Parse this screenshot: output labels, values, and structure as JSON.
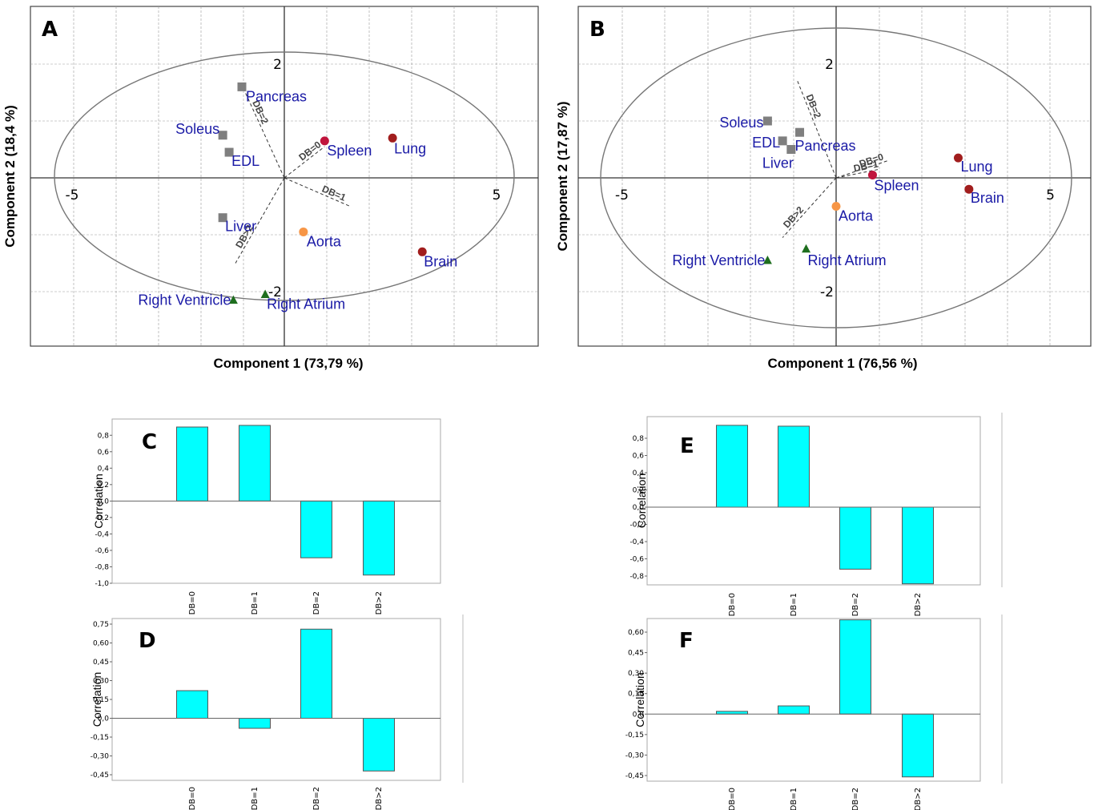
{
  "chart_data": [
    {
      "id": "A",
      "type": "scatter",
      "panel_label": "A",
      "xlabel": "Component 1 (73,79 %)",
      "ylabel": "Component 2 (18,4 %)",
      "xlim": [
        -6,
        6
      ],
      "ylim": [
        -3,
        3
      ],
      "x_tick_labels": [
        {
          "value": -5,
          "label": "-5"
        },
        {
          "value": 5,
          "label": "5"
        }
      ],
      "y_tick_labels": [
        {
          "value": 2,
          "label": "2"
        },
        {
          "value": -2,
          "label": "-2"
        }
      ],
      "grid": true,
      "points": [
        {
          "label": "Pancreas",
          "x": -1.0,
          "y": 1.6,
          "marker": "square",
          "color": "#7f7f7f"
        },
        {
          "label": "Soleus",
          "x": -1.45,
          "y": 0.75,
          "marker": "square",
          "color": "#7f7f7f"
        },
        {
          "label": "EDL",
          "x": -1.3,
          "y": 0.45,
          "marker": "square",
          "color": "#7f7f7f"
        },
        {
          "label": "Liver",
          "x": -1.45,
          "y": -0.7,
          "marker": "square",
          "color": "#7f7f7f"
        },
        {
          "label": "Spleen",
          "x": 0.95,
          "y": 0.65,
          "marker": "circle",
          "color": "#c0143c"
        },
        {
          "label": "Lung",
          "x": 2.55,
          "y": 0.7,
          "marker": "circle",
          "color": "#a11d1d"
        },
        {
          "label": "Brain",
          "x": 3.25,
          "y": -1.3,
          "marker": "circle",
          "color": "#a11d1d"
        },
        {
          "label": "Aorta",
          "x": 0.45,
          "y": -0.95,
          "marker": "circle",
          "color": "#f79646"
        },
        {
          "label": "Right Ventricle",
          "x": -1.2,
          "y": -2.15,
          "marker": "triangle",
          "color": "#1e6e1e"
        },
        {
          "label": "Right Atrium",
          "x": -0.45,
          "y": -2.05,
          "marker": "triangle",
          "color": "#1e6e1e"
        }
      ],
      "vectors": [
        {
          "label": "DB=0",
          "x": 0.95,
          "y": 0.55
        },
        {
          "label": "DB=1",
          "x": 1.55,
          "y": -0.5
        },
        {
          "label": "DB=2",
          "x": -0.95,
          "y": 1.55
        },
        {
          "label": "DB>2",
          "x": -1.15,
          "y": -1.5
        }
      ]
    },
    {
      "id": "B",
      "type": "scatter",
      "panel_label": "B",
      "xlabel": "Component 1 (76,56 %)",
      "ylabel": "Component 2 (17,87 %)",
      "xlim": [
        -6,
        6
      ],
      "ylim": [
        -3,
        3
      ],
      "x_tick_labels": [
        {
          "value": -5,
          "label": "-5"
        },
        {
          "value": 5,
          "label": "5"
        }
      ],
      "y_tick_labels": [
        {
          "value": 2,
          "label": "2"
        },
        {
          "value": -2,
          "label": "-2"
        }
      ],
      "grid": true,
      "points": [
        {
          "label": "Soleus",
          "x": -1.6,
          "y": 1.0,
          "marker": "square",
          "color": "#7f7f7f"
        },
        {
          "label": "EDL",
          "x": -1.25,
          "y": 0.65,
          "marker": "square",
          "color": "#7f7f7f"
        },
        {
          "label": "Pancreas",
          "x": -0.85,
          "y": 0.8,
          "marker": "square",
          "color": "#7f7f7f"
        },
        {
          "label": "Liver",
          "x": -1.05,
          "y": 0.5,
          "marker": "square",
          "color": "#7f7f7f"
        },
        {
          "label": "Lung",
          "x": 2.85,
          "y": 0.35,
          "marker": "circle",
          "color": "#a11d1d"
        },
        {
          "label": "Brain",
          "x": 3.1,
          "y": -0.2,
          "marker": "circle",
          "color": "#a11d1d"
        },
        {
          "label": "Spleen",
          "x": 0.85,
          "y": 0.05,
          "marker": "circle",
          "color": "#c0143c"
        },
        {
          "label": "Aorta",
          "x": 0.0,
          "y": -0.5,
          "marker": "circle",
          "color": "#f79646"
        },
        {
          "label": "Right Ventricle",
          "x": -1.6,
          "y": -1.45,
          "marker": "triangle",
          "color": "#1e6e1e"
        },
        {
          "label": "Right Atrium",
          "x": -0.7,
          "y": -1.25,
          "marker": "triangle",
          "color": "#1e6e1e"
        }
      ],
      "vectors": [
        {
          "label": "DB=0",
          "x": 1.2,
          "y": 0.3
        },
        {
          "label": "DB=1",
          "x": 1.0,
          "y": 0.15
        },
        {
          "label": "DB=2",
          "x": -0.9,
          "y": 1.7
        },
        {
          "label": "DB>2",
          "x": -1.25,
          "y": -1.05
        }
      ]
    },
    {
      "id": "C",
      "type": "bar",
      "panel_label": "C",
      "ylabel": "Correlation",
      "categories": [
        "DB=0",
        "DB=1",
        "DB=2",
        "DB>2"
      ],
      "values": [
        0.9,
        0.92,
        -0.69,
        -0.9
      ],
      "ylim": [
        -1.0,
        1.0
      ],
      "ticks": [
        {
          "value": 0.8,
          "label": "0,8"
        },
        {
          "value": 0.6,
          "label": "0,6"
        },
        {
          "value": 0.4,
          "label": "0,4"
        },
        {
          "value": 0.2,
          "label": "0,2"
        },
        {
          "value": 0.0,
          "label": "0,0"
        },
        {
          "value": -0.2,
          "label": "-0,2"
        },
        {
          "value": -0.4,
          "label": "-0,4"
        },
        {
          "value": -0.6,
          "label": "-0,6"
        },
        {
          "value": -0.8,
          "label": "-0,8"
        },
        {
          "value": -1.0,
          "label": "-1,0"
        }
      ],
      "bar_color": "#00ffff"
    },
    {
      "id": "D",
      "type": "bar",
      "panel_label": "D",
      "ylabel": "Correlation",
      "categories": [
        "DB=0",
        "DB=1",
        "DB=2",
        "DB>2"
      ],
      "values": [
        0.22,
        -0.08,
        0.71,
        -0.42
      ],
      "ylim": [
        -0.5,
        0.8
      ],
      "ticks": [
        {
          "value": 0.75,
          "label": "0,75"
        },
        {
          "value": 0.6,
          "label": "0,60"
        },
        {
          "value": 0.45,
          "label": "0,45"
        },
        {
          "value": 0.3,
          "label": "0,30"
        },
        {
          "value": 0.15,
          "label": "0,15"
        },
        {
          "value": 0.0,
          "label": "0,0"
        },
        {
          "value": -0.15,
          "label": "-0,15"
        },
        {
          "value": -0.3,
          "label": "-0,30"
        },
        {
          "value": -0.45,
          "label": "-0,45"
        }
      ],
      "bar_color": "#00ffff"
    },
    {
      "id": "E",
      "type": "bar",
      "panel_label": "E",
      "ylabel": "Correlation",
      "categories": [
        "DB=0",
        "DB=1",
        "DB=2",
        "DB>2"
      ],
      "values": [
        0.95,
        0.94,
        -0.72,
        -0.89
      ],
      "ylim": [
        -0.9,
        1.0
      ],
      "ticks": [
        {
          "value": 0.8,
          "label": "0,8"
        },
        {
          "value": 0.6,
          "label": "0,6"
        },
        {
          "value": 0.4,
          "label": "0,4"
        },
        {
          "value": 0.2,
          "label": "0,2"
        },
        {
          "value": 0.0,
          "label": "0,0"
        },
        {
          "value": -0.2,
          "label": "-0,2"
        },
        {
          "value": -0.4,
          "label": "-0,4"
        },
        {
          "value": -0.6,
          "label": "-0,6"
        },
        {
          "value": -0.8,
          "label": "-0,8"
        }
      ],
      "bar_color": "#00ffff"
    },
    {
      "id": "F",
      "type": "bar",
      "panel_label": "F",
      "ylabel": "Correlation",
      "categories": [
        "DB=0",
        "DB=1",
        "DB=2",
        "DB>2"
      ],
      "values": [
        0.02,
        0.06,
        0.69,
        -0.46
      ],
      "ylim": [
        -0.5,
        0.69
      ],
      "ticks": [
        {
          "value": 0.6,
          "label": "0,60"
        },
        {
          "value": 0.45,
          "label": "0,45"
        },
        {
          "value": 0.3,
          "label": "0,30"
        },
        {
          "value": 0.15,
          "label": "0,15"
        },
        {
          "value": 0.0,
          "label": "0,0"
        },
        {
          "value": -0.15,
          "label": "-0,15"
        },
        {
          "value": -0.3,
          "label": "-0,30"
        },
        {
          "value": -0.45,
          "label": "-0,45"
        }
      ],
      "bar_color": "#00ffff"
    }
  ]
}
